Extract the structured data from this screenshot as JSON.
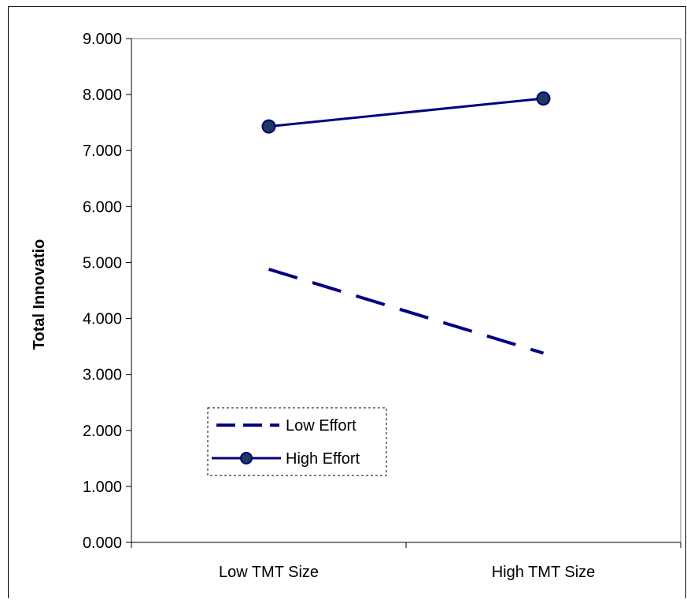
{
  "chart_data": {
    "type": "line",
    "title": "",
    "xlabel": "",
    "ylabel": "Total Innovatio",
    "categories": [
      "Low TMT Size",
      "High TMT Size"
    ],
    "series": [
      {
        "name": "Low Effort",
        "values": [
          4.88,
          3.38
        ],
        "color": "#000080",
        "line_style": "dashed",
        "marker": "none"
      },
      {
        "name": "High Effort",
        "values": [
          7.43,
          7.93
        ],
        "color": "#000080",
        "line_style": "solid",
        "marker": "circle",
        "marker_fill": "#1c3a5c"
      }
    ],
    "ylim": [
      0,
      9
    ],
    "ytick_step": 1,
    "ytick_labels": [
      "0.000",
      "1.000",
      "2.000",
      "3.000",
      "4.000",
      "5.000",
      "6.000",
      "7.000",
      "8.000",
      "9.000"
    ],
    "grid": false,
    "legend_position": "bottom-left"
  }
}
